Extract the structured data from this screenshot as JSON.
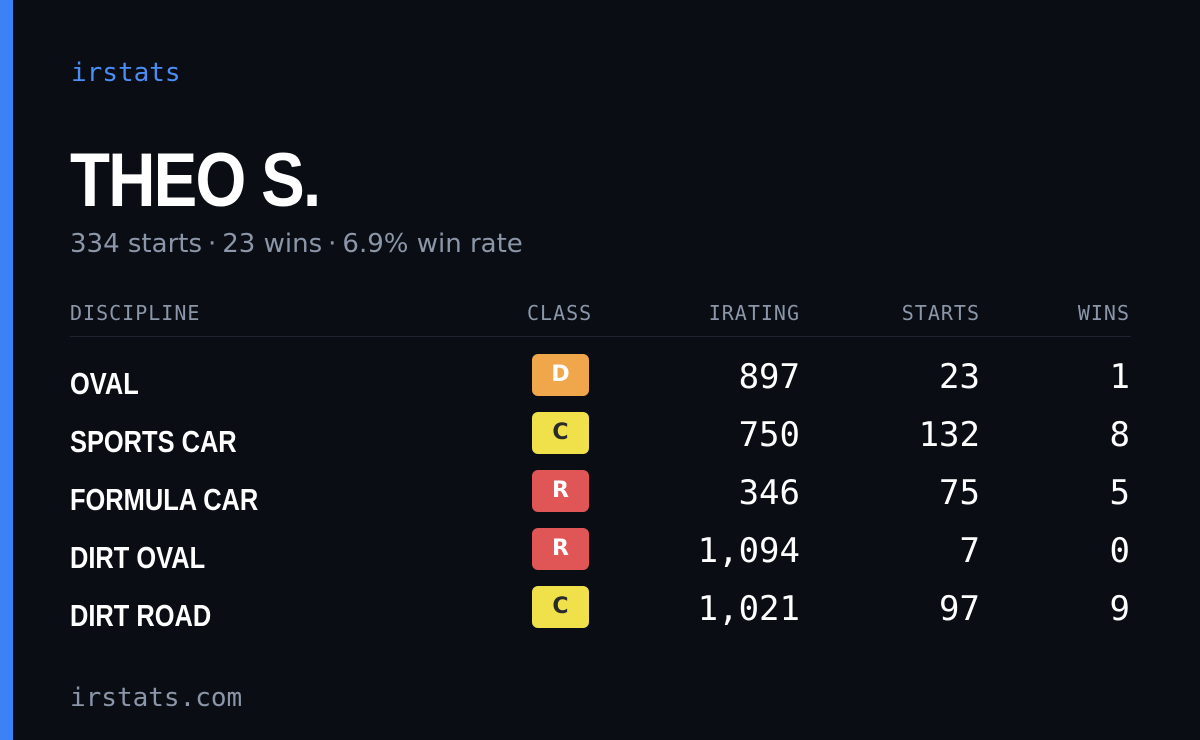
{
  "brand": "irstats",
  "driver": {
    "name": "THEO S."
  },
  "summary": {
    "starts": "334 starts",
    "wins": "23 wins",
    "win_rate": "6.9% win rate",
    "separator": "·"
  },
  "table": {
    "headers": {
      "discipline": "DISCIPLINE",
      "class": "CLASS",
      "irating": "IRATING",
      "starts": "STARTS",
      "wins": "WINS"
    },
    "rows": [
      {
        "discipline": "OVAL",
        "class": "D",
        "irating": "897",
        "starts": "23",
        "wins": "1"
      },
      {
        "discipline": "SPORTS CAR",
        "class": "C",
        "irating": "750",
        "starts": "132",
        "wins": "8"
      },
      {
        "discipline": "FORMULA CAR",
        "class": "R",
        "irating": "346",
        "starts": "75",
        "wins": "5"
      },
      {
        "discipline": "DIRT OVAL",
        "class": "R",
        "irating": "1,094",
        "starts": "7",
        "wins": "0"
      },
      {
        "discipline": "DIRT ROAD",
        "class": "C",
        "irating": "1,021",
        "starts": "97",
        "wins": "9"
      }
    ]
  },
  "class_colors": {
    "D": {
      "bg": "#f0a64a",
      "fg": "#ffffff"
    },
    "C": {
      "bg": "#f0e04a",
      "fg": "#2a2a2a"
    },
    "R": {
      "bg": "#e05555",
      "fg": "#ffffff"
    }
  },
  "colors": {
    "accent": "#3b82f6",
    "background": "#0a0d14",
    "muted": "#8b96a8"
  },
  "footer": "irstats.com"
}
